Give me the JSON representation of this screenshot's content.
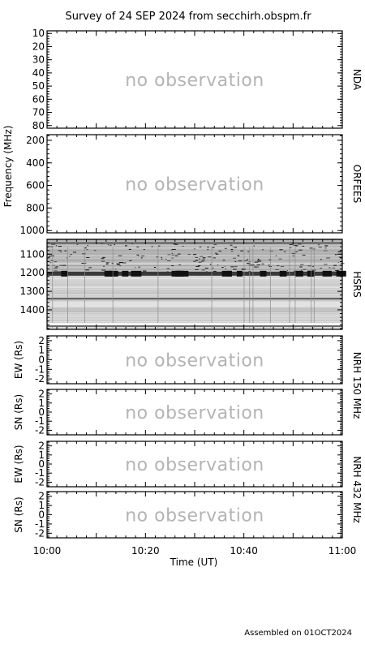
{
  "chart_data": {
    "type": "heatmap",
    "title": "Survey of 24 SEP 2024 from secchirh.obspm.fr",
    "footer": "Assembled on 01OCT2024",
    "xlabel": "Time (UT)",
    "xlim": [
      "10:00",
      "11:00"
    ],
    "x_tick_labels": [
      "10:00",
      "10:20",
      "10:40",
      "11:00"
    ],
    "frequency_axis_label": "Frequency (MHz)",
    "no_observation_text": "no observation",
    "panels": [
      {
        "id": "nda",
        "instrument": "NDA",
        "ylim": [
          8,
          82
        ],
        "ticks": [
          10,
          20,
          30,
          40,
          50,
          60,
          70,
          80
        ],
        "observed": false
      },
      {
        "id": "orfees",
        "instrument": "ORFEES",
        "ylim": [
          150,
          1020
        ],
        "ticks": [
          200,
          400,
          600,
          800,
          1000
        ],
        "observed": false
      },
      {
        "id": "hsrs",
        "instrument": "HSRS",
        "ylim": [
          1020,
          1505
        ],
        "ticks": [
          1100,
          1200,
          1300,
          1400
        ],
        "observed": true,
        "dark_bands_mhz": [
          1040,
          1205,
          1340
        ]
      },
      {
        "id": "nrh150_ew",
        "ylabel": "EW (Rs)",
        "ylim": [
          -2.5,
          2.5
        ],
        "ticks": [
          2,
          1,
          0,
          -1,
          -2
        ],
        "observed": false
      },
      {
        "id": "nrh150_sn",
        "ylabel": "SN (Rs)",
        "ylim": [
          -2.5,
          2.5
        ],
        "ticks": [
          2,
          1,
          0,
          -1,
          -2
        ],
        "observed": false
      },
      {
        "id": "nrh432_ew",
        "ylabel": "EW (Rs)",
        "ylim": [
          -2.5,
          2.5
        ],
        "ticks": [
          2,
          1,
          0,
          -1,
          -2
        ],
        "observed": false
      },
      {
        "id": "nrh432_sn",
        "ylabel": "SN (Rs)",
        "ylim": [
          -2.5,
          2.5
        ],
        "ticks": [
          2,
          1,
          0,
          -1,
          -2
        ],
        "observed": false
      }
    ],
    "nrh_groups": [
      {
        "label": "NRH 150 MHz",
        "panels": [
          "nrh150_ew",
          "nrh150_sn"
        ]
      },
      {
        "label": "NRH 432 MHz",
        "panels": [
          "nrh432_ew",
          "nrh432_sn"
        ]
      }
    ]
  }
}
